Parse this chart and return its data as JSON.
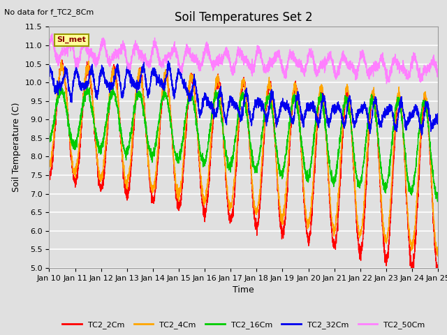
{
  "title": "Soil Temperatures Set 2",
  "no_data_label": "No data for f_TC2_8Cm",
  "si_met_label": "SI_met",
  "ylabel": "Soil Temperature (C)",
  "xlabel": "Time",
  "ylim": [
    5.0,
    11.5
  ],
  "yticks": [
    5.0,
    5.5,
    6.0,
    6.5,
    7.0,
    7.5,
    8.0,
    8.5,
    9.0,
    9.5,
    10.0,
    10.5,
    11.0,
    11.5
  ],
  "series": [
    {
      "name": "TC2_2Cm",
      "color": "#FF0000",
      "lw": 1.0
    },
    {
      "name": "TC2_4Cm",
      "color": "#FFA500",
      "lw": 1.0
    },
    {
      "name": "TC2_16Cm",
      "color": "#00CC00",
      "lw": 1.0
    },
    {
      "name": "TC2_32Cm",
      "color": "#0000EE",
      "lw": 1.0
    },
    {
      "name": "TC2_50Cm",
      "color": "#FF80FF",
      "lw": 1.0
    }
  ],
  "bg_color": "#E0E0E0",
  "plot_bg_color": "#E0E0E0",
  "grid_color": "#FFFFFF",
  "title_fontsize": 12,
  "label_fontsize": 9,
  "tick_fontsize": 8,
  "figsize": [
    6.4,
    4.8
  ],
  "dpi": 100
}
